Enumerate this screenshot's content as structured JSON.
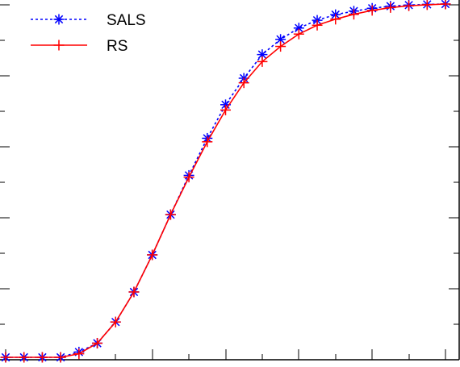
{
  "chart_data": {
    "type": "line",
    "title": "",
    "xlabel": "",
    "ylabel": "",
    "xlim": [
      0,
      25
    ],
    "ylim": [
      0,
      1
    ],
    "grid": false,
    "legend_position": "top-left",
    "series": [
      {
        "name": "SALS",
        "color": "#0000ff",
        "line_style": "dotted",
        "marker": "asterisk",
        "x": [
          0,
          1,
          2,
          3,
          4,
          5,
          6,
          7,
          8,
          9,
          10,
          11,
          12,
          13,
          14,
          15,
          16,
          17,
          18,
          19,
          20,
          21,
          22,
          23,
          24
        ],
        "y": [
          0.0,
          0.0,
          0.0,
          0.0,
          0.015,
          0.04,
          0.1,
          0.185,
          0.29,
          0.404,
          0.515,
          0.62,
          0.715,
          0.79,
          0.857,
          0.9,
          0.932,
          0.954,
          0.97,
          0.98,
          0.988,
          0.994,
          0.997,
          0.999,
          1.0
        ]
      },
      {
        "name": "RS",
        "color": "#ff0000",
        "line_style": "solid",
        "marker": "plus",
        "x": [
          0,
          1,
          2,
          3,
          4,
          5,
          6,
          7,
          8,
          9,
          10,
          11,
          12,
          13,
          14,
          15,
          16,
          17,
          18,
          19,
          20,
          21,
          22,
          23,
          24
        ],
        "y": [
          0.0,
          0.0,
          0.0,
          0.0,
          0.01,
          0.04,
          0.1,
          0.185,
          0.29,
          0.404,
          0.51,
          0.61,
          0.7,
          0.777,
          0.837,
          0.88,
          0.915,
          0.94,
          0.957,
          0.971,
          0.982,
          0.99,
          0.995,
          0.998,
          1.0
        ]
      }
    ]
  }
}
